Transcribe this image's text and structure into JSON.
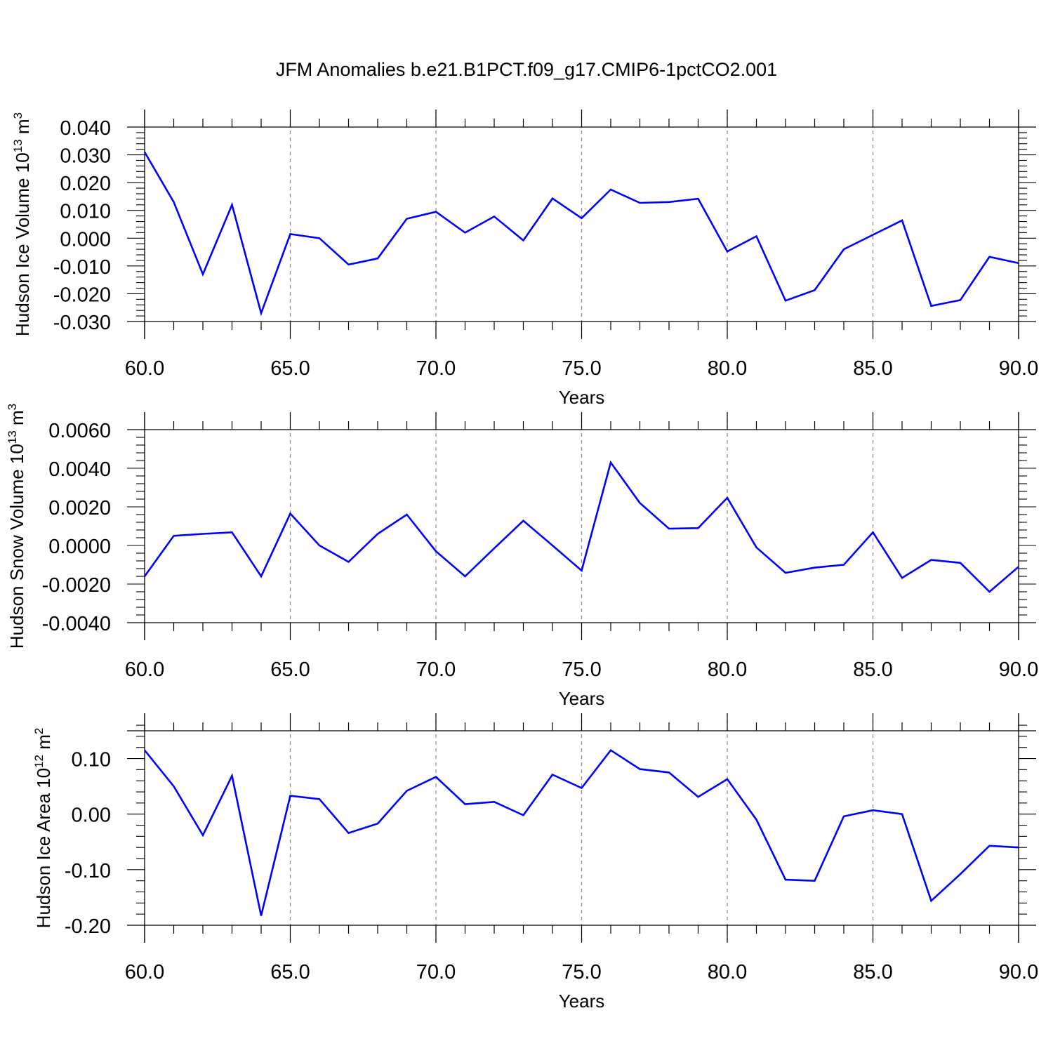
{
  "title": "JFM Anomalies b.e21.B1PCT.f09_g17.CMIP6-1pctCO2.001",
  "colors": {
    "line": "#0000ff",
    "axis": "#000000",
    "grid": "#888888"
  },
  "chart_data": [
    {
      "type": "line",
      "title": "JFM Anomalies b.e21.B1PCT.f09_g17.CMIP6-1pctCO2.001",
      "xlabel": "Years",
      "ylabel": "Hudson Ice Volume 10",
      "ylabel_exp": "13",
      "ylabel_unit": " m",
      "ylabel_unit_exp": "3",
      "xlim": [
        60,
        90
      ],
      "ylim": [
        -0.03,
        0.04
      ],
      "xticks": [
        60,
        65,
        70,
        75,
        80,
        85,
        90
      ],
      "xtick_labels": [
        "60.0",
        "65.0",
        "70.0",
        "75.0",
        "80.0",
        "85.0",
        "90.0"
      ],
      "yticks": [
        -0.03,
        -0.02,
        -0.01,
        0,
        0.01,
        0.02,
        0.03,
        0.04
      ],
      "ytick_labels": [
        "-0.030",
        "-0.020",
        "-0.010",
        "0.000",
        "0.010",
        "0.020",
        "0.030",
        "0.040"
      ],
      "grid": "vertical dashed at major x ticks",
      "x": [
        60,
        61,
        62,
        63,
        64,
        65,
        66,
        67,
        68,
        69,
        70,
        71,
        72,
        73,
        74,
        75,
        76,
        77,
        78,
        79,
        80,
        81,
        82,
        83,
        84,
        85,
        86,
        87,
        88,
        89,
        90
      ],
      "series": [
        {
          "name": "Hudson Ice Volume",
          "values": [
            0.031,
            0.013,
            -0.013,
            0.012,
            -0.027,
            0.0015,
            0.0,
            -0.0095,
            -0.0073,
            0.007,
            0.0095,
            0.002,
            0.0078,
            -0.0008,
            0.0143,
            0.0072,
            0.0175,
            0.0127,
            0.013,
            0.0142,
            -0.0048,
            0.0007,
            -0.0225,
            -0.0187,
            -0.004,
            0.0012,
            0.0064,
            -0.0244,
            -0.0223,
            -0.0067,
            -0.009
          ]
        }
      ]
    },
    {
      "type": "line",
      "xlabel": "Years",
      "ylabel": "Hudson Snow Volume 10",
      "ylabel_exp": "13",
      "ylabel_unit": " m",
      "ylabel_unit_exp": "3",
      "xlim": [
        60,
        90
      ],
      "ylim": [
        -0.004,
        0.006
      ],
      "xticks": [
        60,
        65,
        70,
        75,
        80,
        85,
        90
      ],
      "xtick_labels": [
        "60.0",
        "65.0",
        "70.0",
        "75.0",
        "80.0",
        "85.0",
        "90.0"
      ],
      "yticks": [
        -0.004,
        -0.002,
        0,
        0.002,
        0.004,
        0.006
      ],
      "ytick_labels": [
        "-0.0040",
        "-0.0020",
        "0.0000",
        "0.0020",
        "0.0040",
        "0.0060"
      ],
      "grid": "vertical dashed at major x ticks",
      "x": [
        60,
        61,
        62,
        63,
        64,
        65,
        66,
        67,
        68,
        69,
        70,
        71,
        72,
        73,
        74,
        75,
        76,
        77,
        78,
        79,
        80,
        81,
        82,
        83,
        84,
        85,
        86,
        87,
        88,
        89,
        90
      ],
      "series": [
        {
          "name": "Hudson Snow Volume",
          "values": [
            -0.0016,
            0.0005,
            0.0006,
            0.00068,
            -0.0016,
            0.00165,
            0.0,
            -0.00085,
            0.0006,
            0.0016,
            -0.0003,
            -0.0016,
            -0.00015,
            0.00128,
            0.0,
            -0.0013,
            0.0043,
            0.0022,
            0.00087,
            0.0009,
            0.00247,
            -0.0001,
            -0.00142,
            -0.00115,
            -0.001,
            0.00068,
            -0.00168,
            -0.00075,
            -0.0009,
            -0.0024,
            -0.0011
          ]
        }
      ]
    },
    {
      "type": "line",
      "xlabel": "Years",
      "ylabel": "Hudson Ice Area 10",
      "ylabel_exp": "12",
      "ylabel_unit": " m",
      "ylabel_unit_exp": "2",
      "xlim": [
        60,
        90
      ],
      "ylim": [
        -0.2,
        0.15
      ],
      "xticks": [
        60,
        65,
        70,
        75,
        80,
        85,
        90
      ],
      "xtick_labels": [
        "60.0",
        "65.0",
        "70.0",
        "75.0",
        "80.0",
        "85.0",
        "90.0"
      ],
      "yticks": [
        -0.2,
        -0.1,
        0,
        0.1
      ],
      "ytick_labels": [
        "-0.20",
        "-0.10",
        "0.00",
        "0.10"
      ],
      "grid": "vertical dashed at major x ticks",
      "x": [
        60,
        61,
        62,
        63,
        64,
        65,
        66,
        67,
        68,
        69,
        70,
        71,
        72,
        73,
        74,
        75,
        76,
        77,
        78,
        79,
        80,
        81,
        82,
        83,
        84,
        85,
        86,
        87,
        88,
        89,
        90
      ],
      "series": [
        {
          "name": "Hudson Ice Area",
          "values": [
            0.115,
            0.05,
            -0.038,
            0.069,
            -0.183,
            0.033,
            0.027,
            -0.034,
            -0.017,
            0.042,
            0.067,
            0.018,
            0.022,
            -0.002,
            0.071,
            0.047,
            0.115,
            0.081,
            0.075,
            0.031,
            0.063,
            -0.01,
            -0.118,
            -0.12,
            -0.004,
            0.007,
            0.0,
            -0.156,
            -0.108,
            -0.057,
            -0.06
          ]
        }
      ]
    }
  ]
}
